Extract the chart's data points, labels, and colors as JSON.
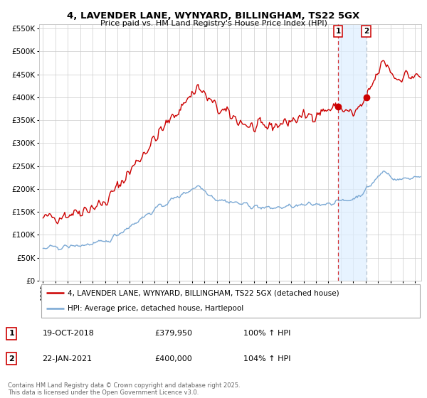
{
  "title": "4, LAVENDER LANE, WYNYARD, BILLINGHAM, TS22 5GX",
  "subtitle": "Price paid vs. HM Land Registry's House Price Index (HPI)",
  "legend_label_red": "4, LAVENDER LANE, WYNYARD, BILLINGHAM, TS22 5GX (detached house)",
  "legend_label_blue": "HPI: Average price, detached house, Hartlepool",
  "transaction1_date": "19-OCT-2018",
  "transaction1_price": "£379,950",
  "transaction1_hpi": "100% ↑ HPI",
  "transaction2_date": "22-JAN-2021",
  "transaction2_price": "£400,000",
  "transaction2_hpi": "104% ↑ HPI",
  "footer": "Contains HM Land Registry data © Crown copyright and database right 2025.\nThis data is licensed under the Open Government Licence v3.0.",
  "vline1_x": 2018.79,
  "vline2_x": 2021.05,
  "marker1_y": 379950,
  "marker2_y": 400000,
  "ylim": [
    0,
    560000
  ],
  "xlim_start": 1994.7,
  "xlim_end": 2025.5,
  "red_color": "#cc0000",
  "blue_color": "#7aa8d4",
  "vline1_color": "#cc0000",
  "vline2_color": "#aabbcc",
  "shade_color": "#ddeeff",
  "background_color": "#ffffff",
  "grid_color": "#cccccc",
  "yticks": [
    0,
    50000,
    100000,
    150000,
    200000,
    250000,
    300000,
    350000,
    400000,
    450000,
    500000,
    550000
  ]
}
